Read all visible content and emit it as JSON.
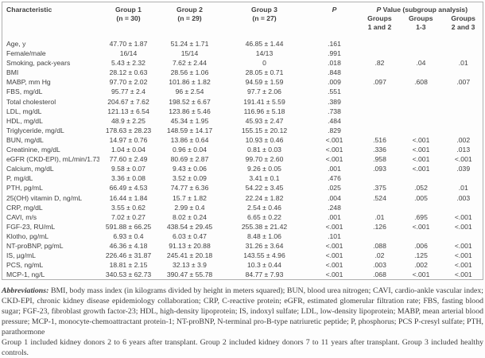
{
  "table": {
    "columns": {
      "characteristic": "Characteristic",
      "group1": "Group 1",
      "group1_n": "(n = 30)",
      "group2": "Group 2",
      "group2_n": "(n = 29)",
      "group3": "Group 3",
      "group3_n": "(n = 27)",
      "p_label": "P",
      "subgroup_p": "P",
      "subgroup_rest": " Value (subgroup analysis)",
      "sub1_line1": "Groups",
      "sub1_line2": "1 and 2",
      "sub2_line1": "Groups",
      "sub2_line2": "1-3",
      "sub3_line1": "Groups",
      "sub3_line2": "2 and 3"
    },
    "rows": [
      {
        "label": "Age, y",
        "g1": "47.70 ± 1.87",
        "g2": "51.24 ± 1.71",
        "g3": "46.85 ± 1.44",
        "p": ".161",
        "p12": "",
        "p13": "",
        "p23": ""
      },
      {
        "label": "Female/male",
        "g1": "16/14",
        "g2": "15/14",
        "g3": "14/13",
        "p": ".991",
        "p12": "",
        "p13": "",
        "p23": ""
      },
      {
        "label": "Smoking, pack-years",
        "g1": "5.43 ± 2.32",
        "g2": "7.62 ± 2.44",
        "g3": "0",
        "p": ".018",
        "p12": ".82",
        "p13": ".04",
        "p23": ".01"
      },
      {
        "label": "BMI",
        "g1": "28.12 ± 0.63",
        "g2": "28.56 ± 1.06",
        "g3": "28.05 ± 0.71",
        "p": ".848",
        "p12": "",
        "p13": "",
        "p23": ""
      },
      {
        "label": "MABP, mm Hg",
        "g1": "97.70 ± 2.02",
        "g2": "101.86 ± 1.82",
        "g3": "94.59 ± 1.59",
        "p": ".009",
        "p12": ".097",
        "p13": ".608",
        "p23": ".007"
      },
      {
        "label": "FBS, mg/dL",
        "g1": "95.77 ± 2.4",
        "g2": "96 ± 2.54",
        "g3": "97.7 ± 2.06",
        "p": ".551",
        "p12": "",
        "p13": "",
        "p23": ""
      },
      {
        "label": "Total cholesterol",
        "g1": "204.67 ± 7.62",
        "g2": "198.52 ± 6.67",
        "g3": "191.41 ± 5.59",
        "p": ".389",
        "p12": "",
        "p13": "",
        "p23": ""
      },
      {
        "label": "LDL, mg/dL",
        "g1": "121.13 ± 6.54",
        "g2": "123.86 ± 5.46",
        "g3": "116.96 ± 5.18",
        "p": ".738",
        "p12": "",
        "p13": "",
        "p23": ""
      },
      {
        "label": "HDL, mg/dL",
        "g1": "48.9 ± 2.25",
        "g2": "45.34 ± 1.95",
        "g3": "45.93 ± 2.47",
        "p": ".484",
        "p12": "",
        "p13": "",
        "p23": ""
      },
      {
        "label": "Triglyceride, mg/dL",
        "g1": "178.63 ± 28.23",
        "g2": "148.59 ± 14.17",
        "g3": "155.15 ± 20.12",
        "p": ".829",
        "p12": "",
        "p13": "",
        "p23": ""
      },
      {
        "label": "BUN, mg/dL",
        "g1": "14.97 ± 0.76",
        "g2": "13.86 ± 0.64",
        "g3": "10.93 ± 0.46",
        "p": "<.001",
        "p12": ".516",
        "p13": "<.001",
        "p23": ".002"
      },
      {
        "label": "Creatinine, mg/dL",
        "g1": "1.04 ± 0.04",
        "g2": "0.96 ± 0.04",
        "g3": "0.81 ± 0.03",
        "p": "<.001",
        "p12": ".336",
        "p13": "<.001",
        "p23": ".013"
      },
      {
        "label": "eGFR (CKD-EPI), mL/min/1.73 m²",
        "g1": "77.60 ± 2.49",
        "g2": "80.69 ± 2.87",
        "g3": "99.70 ± 2.60",
        "p": "<.001",
        "p12": ".958",
        "p13": "<.001",
        "p23": "<.001"
      },
      {
        "label": "Calcium, mg/dL",
        "g1": "9.58 ± 0.07",
        "g2": "9.43 ± 0.06",
        "g3": "9.26 ± 0.05",
        "p": ".001",
        "p12": ".093",
        "p13": "<.001",
        "p23": ".039"
      },
      {
        "label": "P, mg/dL",
        "g1": "3.36 ± 0.08",
        "g2": "3.52 ± 0.09",
        "g3": "3.41 ± 0.1",
        "p": ".476",
        "p12": "",
        "p13": "",
        "p23": ""
      },
      {
        "label": "PTH, pg/mL",
        "g1": "66.49 ± 4.53",
        "g2": "74.77 ± 6.36",
        "g3": "54.22 ± 3.45",
        "p": ".025",
        "p12": ".375",
        "p13": ".052",
        "p23": ".01"
      },
      {
        "label": "25(OH) vitamin D, ng/mL",
        "g1": "16.44 ± 1.84",
        "g2": "15.7 ± 1.82",
        "g3": "22.24 ± 1.82",
        "p": ".004",
        "p12": ".524",
        "p13": ".005",
        "p23": ".003"
      },
      {
        "label": "CRP, mg/dL",
        "g1": "3.55 ± 0.62",
        "g2": "2.99 ± 0.4",
        "g3": "2.54 ± 0.46",
        "p": ".248",
        "p12": "",
        "p13": "",
        "p23": ""
      },
      {
        "label": "CAVI, m/s",
        "g1": "7.02 ± 0.27",
        "g2": "8.02 ± 0.24",
        "g3": "6.65 ± 0.22",
        "p": ".001",
        "p12": ".01",
        "p13": ".695",
        "p23": "<.001"
      },
      {
        "label": "FGF-23, RU/mL",
        "g1": "591.88 ± 66.25",
        "g2": "438.54 ± 29.45",
        "g3": "255.38 ± 21.42",
        "p": "<.001",
        "p12": ".126",
        "p13": "<.001",
        "p23": "<.001"
      },
      {
        "label": "Klotho, pg/mL",
        "g1": "6.93 ± 0.4",
        "g2": "6.03 ± 0.47",
        "g3": "8.48 ± 1.06",
        "p": ".101",
        "p12": "",
        "p13": "",
        "p23": ""
      },
      {
        "label": "NT-proBNP, pg/mL",
        "g1": "46.36 ± 4.18",
        "g2": "91.13 ± 20.88",
        "g3": "31.26 ± 3.64",
        "p": "<.001",
        "p12": ".088",
        "p13": ".006",
        "p23": "<.001"
      },
      {
        "label": "IS, µg/mL",
        "g1": "226.46 ± 31.87",
        "g2": "245.41 ± 20.18",
        "g3": "143.55 ± 4.96",
        "p": "<.001",
        "p12": ".02",
        "p13": ".125",
        "p23": "<.001"
      },
      {
        "label": "PCS, ng/mL",
        "g1": "18.81 ± 2.15",
        "g2": "32.13 ± 3.9",
        "g3": "10.3 ± 0.44",
        "p": "<.001",
        "p12": ".003",
        "p13": ".002",
        "p23": "<.001"
      },
      {
        "label": "MCP-1, ng/L",
        "g1": "340.53 ± 62.73",
        "g2": "390.47 ± 55.78",
        "g3": "84.77 ± 7.93",
        "p": "<.001",
        "p12": ".068",
        "p13": "<.001",
        "p23": "<.001"
      }
    ]
  },
  "footnotes": {
    "abbreviations_label": "Abbreviations:",
    "abbreviations_text": "BMI, body mass index (in kilograms divided by height in meters squared); BUN, blood urea nitrogen; CAVI, cardio-ankle vascular index; CKD-EPI, chronic kidney disease epidemiology collaboration; CRP, C-reactive protein; eGFR, estimated glomerular filtration rate; FBS, fasting blood sugar; FGF-23, fibroblast growth factor-23; HDL, high-density lipoprotein; IS, indoxyl sulfate; LDL, low-density lipoprotein; MABP, mean arterial blood pressure; MCP-1, monocyte-chemoattractant protein-1; NT-proBNP, N-terminal pro-B-type natriuretic peptide; P, phosphorus; PCS P-cresyl sulfate; PTH, parathormone",
    "groups_note": "Group 1 included kidney donors 2 to 6 years after transplant. Group 2 included kidney donors 7 to 11 years after transplant. Group 3 included healthy controls."
  }
}
